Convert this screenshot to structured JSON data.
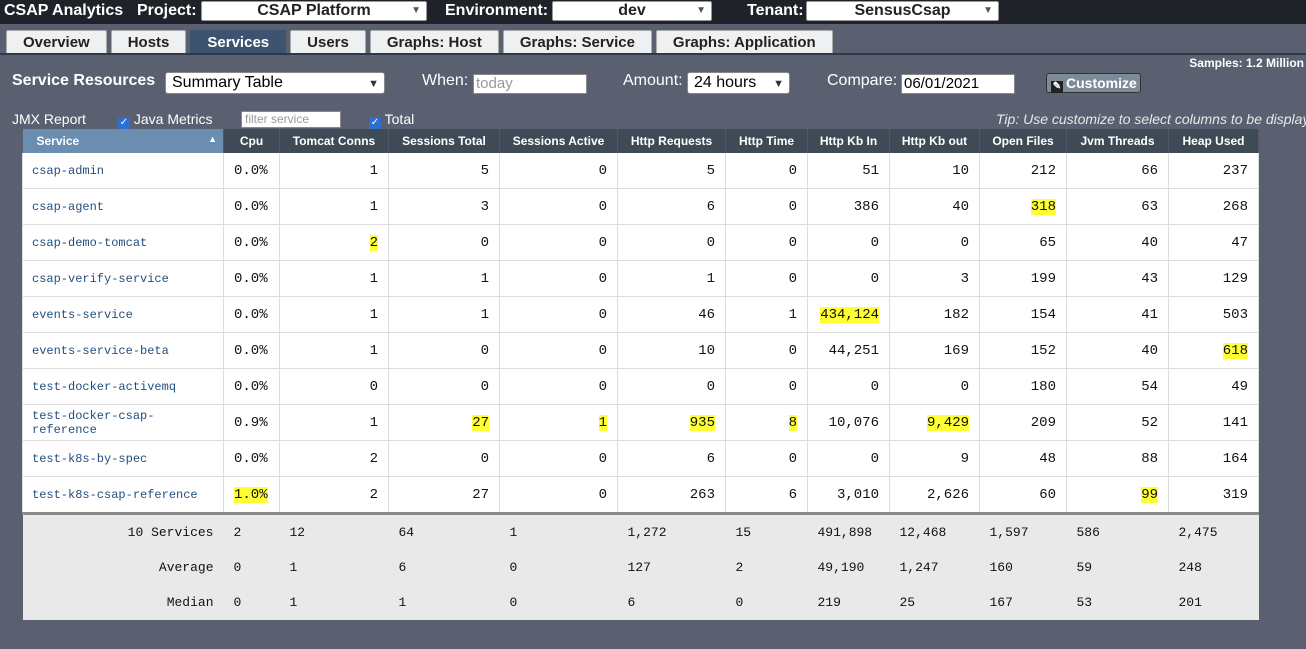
{
  "app_title": "CSAP Analytics",
  "header": {
    "project_label": "Project:",
    "project_value": "CSAP Platform",
    "environment_label": "Environment:",
    "environment_value": "dev",
    "tenant_label": "Tenant:",
    "tenant_value": "SensusCsap"
  },
  "tabs": [
    {
      "label": "Overview",
      "active": false
    },
    {
      "label": "Hosts",
      "active": false
    },
    {
      "label": "Services",
      "active": true
    },
    {
      "label": "Users",
      "active": false
    },
    {
      "label": "Graphs: Host",
      "active": false
    },
    {
      "label": "Graphs: Service",
      "active": false
    },
    {
      "label": "Graphs: Application",
      "active": false
    }
  ],
  "samples": "Samples: 1.2 Million",
  "controls": {
    "title": "Service Resources",
    "view_value": "Summary Table",
    "when_label": "When:",
    "when_placeholder": "today",
    "amount_label": "Amount:",
    "amount_value": "24 hours",
    "compare_label": "Compare:",
    "compare_value": "06/01/2021",
    "customize_label": "Customize"
  },
  "options": {
    "jmx_label": "JMX Report",
    "java_metrics_label": "Java Metrics",
    "filter_placeholder": "filter service",
    "total_label": "Total",
    "tip": "Tip: Use customize to select columns to be displayed"
  },
  "table": {
    "columns": [
      "Service",
      "Cpu",
      "Tomcat Conns",
      "Sessions Total",
      "Sessions Active",
      "Http Requests",
      "Http Time",
      "Http Kb In",
      "Http Kb out",
      "Open Files",
      "Jvm Threads",
      "Heap Used"
    ],
    "rows": [
      {
        "cells": [
          "csap-admin",
          "0.0%",
          "1",
          "5",
          "0",
          "5",
          "0",
          "51",
          "10",
          "212",
          "66",
          "237"
        ],
        "highlight": []
      },
      {
        "cells": [
          "csap-agent",
          "0.0%",
          "1",
          "3",
          "0",
          "6",
          "0",
          "386",
          "40",
          "318",
          "63",
          "268"
        ],
        "highlight": [
          9
        ]
      },
      {
        "cells": [
          "csap-demo-tomcat",
          "0.0%",
          "2",
          "0",
          "0",
          "0",
          "0",
          "0",
          "0",
          "65",
          "40",
          "47"
        ],
        "highlight": [
          2
        ]
      },
      {
        "cells": [
          "csap-verify-service",
          "0.0%",
          "1",
          "1",
          "0",
          "1",
          "0",
          "0",
          "3",
          "199",
          "43",
          "129"
        ],
        "highlight": []
      },
      {
        "cells": [
          "events-service",
          "0.0%",
          "1",
          "1",
          "0",
          "46",
          "1",
          "434,124",
          "182",
          "154",
          "41",
          "503"
        ],
        "highlight": [
          7
        ]
      },
      {
        "cells": [
          "events-service-beta",
          "0.0%",
          "1",
          "0",
          "0",
          "10",
          "0",
          "44,251",
          "169",
          "152",
          "40",
          "618"
        ],
        "highlight": [
          11
        ]
      },
      {
        "cells": [
          "test-docker-activemq",
          "0.0%",
          "0",
          "0",
          "0",
          "0",
          "0",
          "0",
          "0",
          "180",
          "54",
          "49"
        ],
        "highlight": []
      },
      {
        "cells": [
          "test-docker-csap-reference",
          "0.9%",
          "1",
          "27",
          "1",
          "935",
          "8",
          "10,076",
          "9,429",
          "209",
          "52",
          "141"
        ],
        "highlight": [
          3,
          4,
          5,
          6,
          8
        ]
      },
      {
        "cells": [
          "test-k8s-by-spec",
          "0.0%",
          "2",
          "0",
          "0",
          "6",
          "0",
          "0",
          "9",
          "48",
          "88",
          "164"
        ],
        "highlight": []
      },
      {
        "cells": [
          "test-k8s-csap-reference",
          "1.0%",
          "2",
          "27",
          "0",
          "263",
          "6",
          "3,010",
          "2,626",
          "60",
          "99",
          "319"
        ],
        "highlight": [
          1,
          10
        ]
      }
    ],
    "footer": [
      {
        "cells": [
          "10 Services",
          "2",
          "12",
          "64",
          "1",
          "1,272",
          "15",
          "491,898",
          "12,468",
          "1,597",
          "586",
          "2,475"
        ]
      },
      {
        "cells": [
          "Average",
          "0",
          "1",
          "6",
          "0",
          "127",
          "2",
          "49,190",
          "1,247",
          "160",
          "59",
          "248"
        ]
      },
      {
        "cells": [
          "Median",
          "0",
          "1",
          "1",
          "0",
          "6",
          "0",
          "219",
          "25",
          "167",
          "53",
          "201"
        ]
      }
    ]
  },
  "colors": {
    "highlight": "#ffff33",
    "active_tab": "#3d5470",
    "header_bg": "#3f4a57",
    "sorted_header_bg": "#6a8db0"
  },
  "icons": {
    "sort": "sort-ascending-icon",
    "customize": "edit-icon",
    "dropdown": "chevron-down-icon",
    "checkbox": "checkbox-checked-icon"
  }
}
